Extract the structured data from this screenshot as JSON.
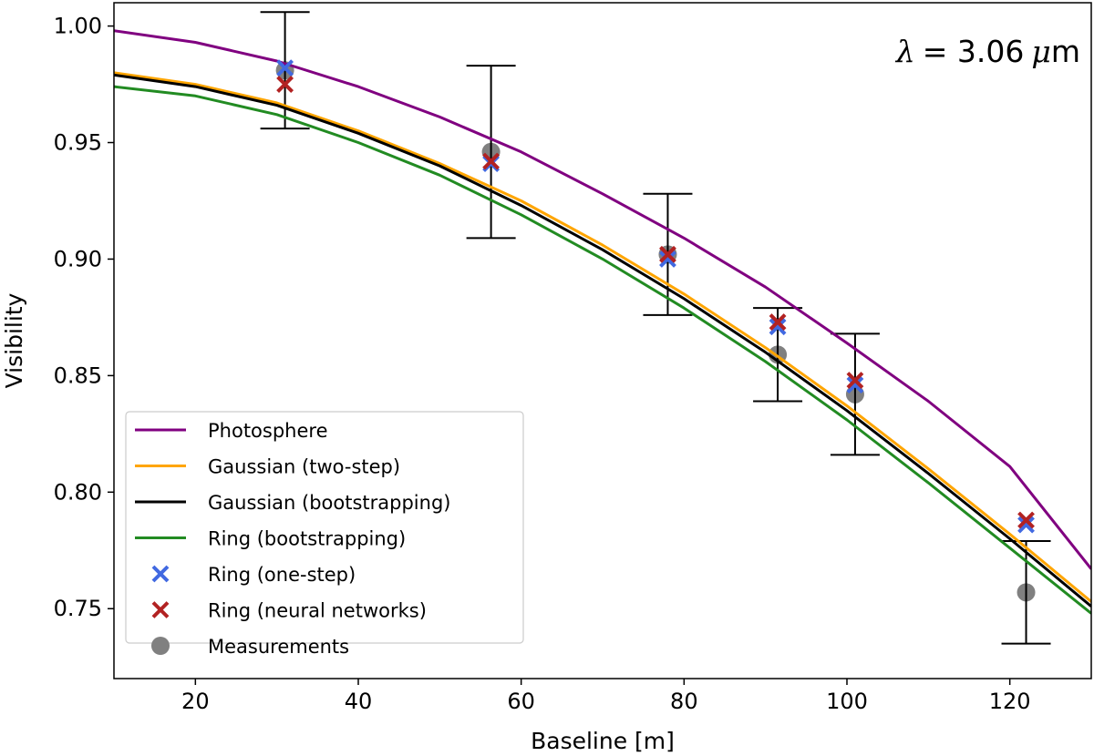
{
  "chart_data": {
    "type": "line",
    "xlabel": "Baseline [m]",
    "ylabel": "Visibility",
    "xlim": [
      10,
      130
    ],
    "ylim": [
      0.72,
      1.01
    ],
    "xticks": [
      20,
      40,
      60,
      80,
      100,
      120
    ],
    "yticks": [
      0.75,
      0.8,
      0.85,
      0.9,
      0.95,
      1.0
    ],
    "xtick_labels": [
      "20",
      "40",
      "60",
      "80",
      "100",
      "120"
    ],
    "ytick_labels": [
      "0.75",
      "0.80",
      "0.85",
      "0.90",
      "0.95",
      "1.00"
    ],
    "grid": false,
    "legend_position": "lower-left",
    "annotation": {
      "symbol": "λ",
      "equals": "= 3.06",
      "unit_prefix": "μ",
      "unit": "m"
    },
    "series": [
      {
        "name": "Photosphere",
        "kind": "line",
        "color": "#800080",
        "x": [
          10,
          20,
          30,
          40,
          50,
          60,
          70,
          80,
          90,
          100,
          110,
          120,
          130
        ],
        "y": [
          0.998,
          0.993,
          0.985,
          0.974,
          0.961,
          0.946,
          0.928,
          0.909,
          0.888,
          0.864,
          0.839,
          0.811,
          0.767
        ]
      },
      {
        "name": "Gaussian (two-step)",
        "kind": "line",
        "color": "#ffa500",
        "x": [
          10,
          20,
          30,
          40,
          50,
          60,
          70,
          80,
          90,
          100,
          110,
          120,
          130
        ],
        "y": [
          0.98,
          0.975,
          0.967,
          0.955,
          0.941,
          0.925,
          0.906,
          0.885,
          0.862,
          0.837,
          0.81,
          0.782,
          0.753
        ]
      },
      {
        "name": "Gaussian (bootstrapping)",
        "kind": "line",
        "color": "#000000",
        "x": [
          10,
          20,
          30,
          40,
          50,
          60,
          70,
          80,
          90,
          100,
          110,
          120,
          130
        ],
        "y": [
          0.979,
          0.974,
          0.966,
          0.954,
          0.94,
          0.923,
          0.904,
          0.883,
          0.86,
          0.835,
          0.808,
          0.78,
          0.751
        ]
      },
      {
        "name": "Ring (bootstrapping)",
        "kind": "line",
        "color": "#228b22",
        "x": [
          10,
          20,
          30,
          40,
          50,
          60,
          70,
          80,
          90,
          100,
          110,
          120,
          130
        ],
        "y": [
          0.974,
          0.97,
          0.962,
          0.95,
          0.936,
          0.919,
          0.9,
          0.879,
          0.856,
          0.831,
          0.804,
          0.776,
          0.748
        ]
      },
      {
        "name": "Ring (one-step)",
        "kind": "marker-x",
        "color": "#4169e1",
        "x": [
          31,
          56.3,
          78,
          91.5,
          101,
          122
        ],
        "y": [
          0.982,
          0.941,
          0.9,
          0.871,
          0.846,
          0.786
        ]
      },
      {
        "name": "Ring (neural networks)",
        "kind": "marker-x",
        "color": "#b22222",
        "x": [
          31,
          56.3,
          78,
          91.5,
          101,
          122
        ],
        "y": [
          0.975,
          0.942,
          0.902,
          0.873,
          0.848,
          0.788
        ]
      },
      {
        "name": "Measurements",
        "kind": "errorbar",
        "color": "#808080",
        "x": [
          31,
          56.3,
          78,
          91.5,
          101,
          122
        ],
        "y": [
          0.981,
          0.946,
          0.902,
          0.859,
          0.842,
          0.757
        ],
        "yerr": [
          0.025,
          0.037,
          0.026,
          0.02,
          0.026,
          0.022
        ]
      }
    ]
  }
}
